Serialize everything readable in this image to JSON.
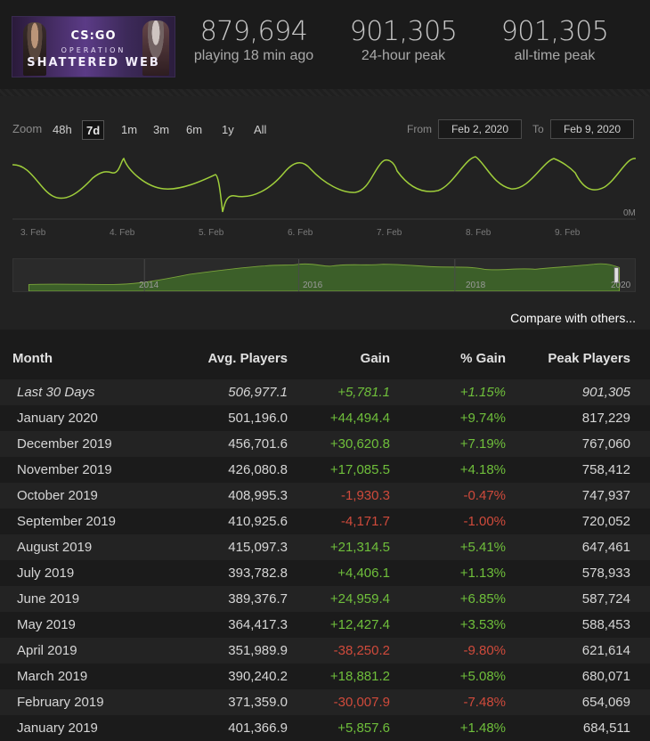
{
  "header": {
    "banner": {
      "logo": "CS:GO",
      "operation": "OPERATION",
      "subtitle": "SHATTERED WEB"
    },
    "stats": [
      {
        "value": "879,694",
        "label": "playing 18 min ago"
      },
      {
        "value": "901,305",
        "label": "24-hour peak"
      },
      {
        "value": "901,305",
        "label": "all-time peak"
      }
    ]
  },
  "chart": {
    "zoom_label": "Zoom",
    "zoom_options": [
      "48h",
      "7d",
      "1m",
      "3m",
      "6m",
      "1y",
      "All"
    ],
    "zoom_selected": "7d",
    "from_label": "From",
    "from_value": "Feb 2, 2020",
    "to_label": "To",
    "to_value": "Feb 9, 2020",
    "y_label": "0M",
    "x_ticks": [
      "3. Feb",
      "4. Feb",
      "5. Feb",
      "6. Feb",
      "7. Feb",
      "8. Feb",
      "9. Feb"
    ],
    "navigator_years": [
      "2014",
      "2016",
      "2018",
      "2020"
    ],
    "line_color": "#9fce3b",
    "compare_link": "Compare with others..."
  },
  "chart_data": {
    "type": "line",
    "xlabel": "",
    "ylabel": "",
    "x": [
      "Feb 2",
      "Feb 3",
      "Feb 4",
      "Feb 5",
      "Feb 6",
      "Feb 7",
      "Feb 8",
      "Feb 9"
    ],
    "series": [
      {
        "values": [
          0.75,
          0.35,
          0.82,
          0.9,
          0.85,
          0.88,
          0.86,
          0.9
        ]
      }
    ]
  },
  "table": {
    "headers": [
      "Month",
      "Avg. Players",
      "Gain",
      "% Gain",
      "Peak Players"
    ],
    "rows": [
      {
        "month": "Last 30 Days",
        "avg": "506,977.1",
        "gain": "+5,781.1",
        "pct": "+1.15%",
        "peak": "901,305"
      },
      {
        "month": "January 2020",
        "avg": "501,196.0",
        "gain": "+44,494.4",
        "pct": "+9.74%",
        "peak": "817,229"
      },
      {
        "month": "December 2019",
        "avg": "456,701.6",
        "gain": "+30,620.8",
        "pct": "+7.19%",
        "peak": "767,060"
      },
      {
        "month": "November 2019",
        "avg": "426,080.8",
        "gain": "+17,085.5",
        "pct": "+4.18%",
        "peak": "758,412"
      },
      {
        "month": "October 2019",
        "avg": "408,995.3",
        "gain": "-1,930.3",
        "pct": "-0.47%",
        "peak": "747,937"
      },
      {
        "month": "September 2019",
        "avg": "410,925.6",
        "gain": "-4,171.7",
        "pct": "-1.00%",
        "peak": "720,052"
      },
      {
        "month": "August 2019",
        "avg": "415,097.3",
        "gain": "+21,314.5",
        "pct": "+5.41%",
        "peak": "647,461"
      },
      {
        "month": "July 2019",
        "avg": "393,782.8",
        "gain": "+4,406.1",
        "pct": "+1.13%",
        "peak": "578,933"
      },
      {
        "month": "June 2019",
        "avg": "389,376.7",
        "gain": "+24,959.4",
        "pct": "+6.85%",
        "peak": "587,724"
      },
      {
        "month": "May 2019",
        "avg": "364,417.3",
        "gain": "+12,427.4",
        "pct": "+3.53%",
        "peak": "588,453"
      },
      {
        "month": "April 2019",
        "avg": "351,989.9",
        "gain": "-38,250.2",
        "pct": "-9.80%",
        "peak": "621,614"
      },
      {
        "month": "March 2019",
        "avg": "390,240.2",
        "gain": "+18,881.2",
        "pct": "+5.08%",
        "peak": "680,071"
      },
      {
        "month": "February 2019",
        "avg": "371,359.0",
        "gain": "-30,007.9",
        "pct": "-7.48%",
        "peak": "654,069"
      },
      {
        "month": "January 2019",
        "avg": "401,366.9",
        "gain": "+5,857.6",
        "pct": "+1.48%",
        "peak": "684,511"
      }
    ]
  }
}
